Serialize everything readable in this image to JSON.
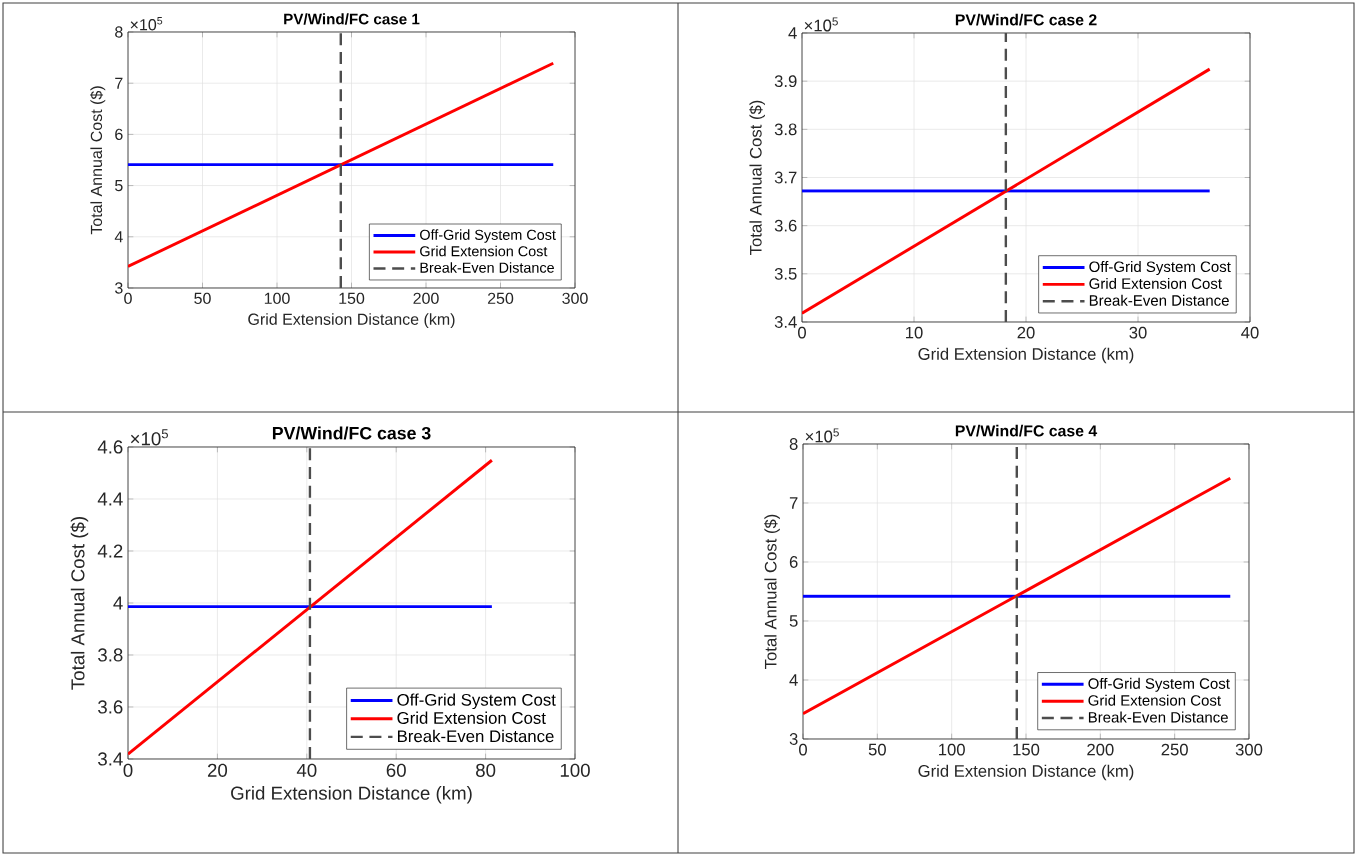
{
  "chart_data": [
    {
      "type": "line",
      "title": "PV/Wind/FC case 1",
      "xlabel": "Grid Extension Distance (km)",
      "ylabel": "Total Annual Cost ($)",
      "annotations": [
        "×10$^{5}$"
      ],
      "x": [
        0,
        285.4
      ],
      "series": [
        {
          "name": "Off-Grid System Cost",
          "color": "#0000ff",
          "values": [
            5.41,
            5.41
          ]
        },
        {
          "name": "Grid Extension Cost",
          "color": "#ff0000",
          "values": [
            3.42,
            7.39
          ]
        },
        {
          "name": "Break-Even Distance",
          "color": "#4d4d4d",
          "x": [
            142.8,
            142.8
          ],
          "values": [
            3,
            8
          ],
          "line_style": "dashed"
        }
      ],
      "xlim": [
        0,
        300
      ],
      "xticks": [
        0,
        50,
        100,
        150,
        200,
        250,
        300
      ],
      "ylim": [
        3,
        8
      ],
      "yticks": [
        3,
        4,
        5,
        6,
        7,
        8
      ],
      "grid": true,
      "legend": "bottom right",
      "line_style": "solid"
    },
    {
      "type": "line",
      "title": "PV/Wind/FC case 2",
      "xlabel": "Grid Extension Distance (km)",
      "ylabel": "Total Annual Cost ($)",
      "annotations": [
        "×10$^{5}$"
      ],
      "x": [
        0,
        36.4
      ],
      "series": [
        {
          "name": "Off-Grid System Cost",
          "color": "#0000ff",
          "values": [
            3.672,
            3.672
          ]
        },
        {
          "name": "Grid Extension Cost",
          "color": "#ff0000",
          "values": [
            3.418,
            3.925
          ]
        },
        {
          "name": "Break-Even Distance",
          "color": "#4d4d4d",
          "x": [
            18.2,
            18.2
          ],
          "values": [
            3.4,
            4
          ],
          "line_style": "dashed"
        }
      ],
      "xlim": [
        0,
        40
      ],
      "xticks": [
        0,
        10,
        20,
        30,
        40
      ],
      "ylim": [
        3.4,
        4
      ],
      "yticks": [
        3.4,
        3.5,
        3.6,
        3.7,
        3.8,
        3.9,
        4
      ],
      "grid": true,
      "legend": "bottom right",
      "line_style": "solid"
    },
    {
      "type": "line",
      "title": "PV/Wind/FC case 3",
      "xlabel": "Grid Extension Distance (km)",
      "ylabel": "Total Annual Cost ($)",
      "annotations": [
        "×10$^{5}$"
      ],
      "x": [
        0,
        81.4
      ],
      "series": [
        {
          "name": "Off-Grid System Cost",
          "color": "#0000ff",
          "values": [
            3.986,
            3.986
          ]
        },
        {
          "name": "Grid Extension Cost",
          "color": "#ff0000",
          "values": [
            3.419,
            4.549
          ]
        },
        {
          "name": "Break-Even Distance",
          "color": "#4d4d4d",
          "x": [
            40.7,
            40.7
          ],
          "values": [
            3.4,
            4.6
          ],
          "line_style": "dashed"
        }
      ],
      "xlim": [
        0,
        100
      ],
      "xticks": [
        0,
        20,
        40,
        60,
        80,
        100
      ],
      "ylim": [
        3.4,
        4.6
      ],
      "yticks": [
        3.4,
        3.6,
        3.8,
        4,
        4.2,
        4.4,
        4.6
      ],
      "grid": true,
      "legend": "bottom right",
      "line_style": "solid"
    },
    {
      "type": "line",
      "title": "PV/Wind/FC case 4",
      "xlabel": "Grid Extension Distance (km)",
      "ylabel": "Total Annual Cost ($)",
      "annotations": [
        "×10$^{5}$"
      ],
      "x": [
        0,
        287.4
      ],
      "series": [
        {
          "name": "Off-Grid System Cost",
          "color": "#0000ff",
          "values": [
            5.42,
            5.42
          ]
        },
        {
          "name": "Grid Extension Cost",
          "color": "#ff0000",
          "values": [
            3.43,
            7.42
          ]
        },
        {
          "name": "Break-Even Distance",
          "color": "#4d4d4d",
          "x": [
            143.8,
            143.8
          ],
          "values": [
            3,
            8
          ],
          "line_style": "dashed"
        }
      ],
      "xlim": [
        0,
        300
      ],
      "xticks": [
        0,
        50,
        100,
        150,
        200,
        250,
        300
      ],
      "ylim": [
        3,
        8
      ],
      "yticks": [
        3,
        4,
        5,
        6,
        7,
        8
      ],
      "grid": true,
      "legend": "bottom right",
      "line_style": "solid"
    }
  ]
}
